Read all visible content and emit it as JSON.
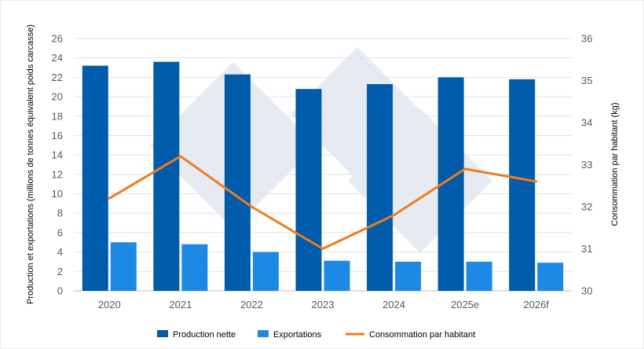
{
  "chart_data": {
    "type": "bar",
    "categories": [
      "2020",
      "2021",
      "2022",
      "2023",
      "2024",
      "2025e",
      "2026f"
    ],
    "series": [
      {
        "name": "Production nette",
        "kind": "bar",
        "axis": "left",
        "color": "#005BAA",
        "values": [
          23.2,
          23.6,
          22.3,
          20.8,
          21.3,
          22.0,
          21.8
        ]
      },
      {
        "name": "Exportations",
        "kind": "bar",
        "axis": "left",
        "color": "#1E88E5",
        "values": [
          5.0,
          4.8,
          4.0,
          3.1,
          3.0,
          3.0,
          2.9
        ]
      },
      {
        "name": "Consommation par habitant",
        "kind": "line",
        "axis": "right",
        "color": "#F07C1B",
        "values": [
          32.2,
          33.2,
          32.0,
          31.0,
          31.8,
          32.9,
          32.6
        ]
      }
    ],
    "ylabel": "Production et exportations (millions de tonnes équivalent poids carcasse)",
    "y2label": "Consommation par habitant (kg)",
    "ylim": [
      0,
      26
    ],
    "yticks": [
      "0",
      "2",
      "4",
      "6",
      "8",
      "10",
      "12",
      "14",
      "16",
      "18",
      "20",
      "22",
      "24",
      "26"
    ],
    "y2lim": [
      30,
      36
    ],
    "y2ticks": [
      "30",
      "31",
      "32",
      "33",
      "34",
      "35",
      "36"
    ],
    "grid": true,
    "legend_position": "bottom"
  }
}
